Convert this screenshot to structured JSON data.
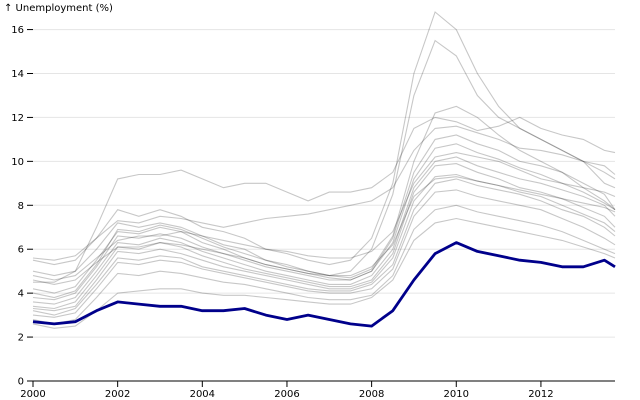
{
  "chart_data": {
    "type": "line",
    "title": "",
    "xlabel": "",
    "ylabel": "↑ Unemployment (%)",
    "xlim": [
      2000,
      2013.75
    ],
    "ylim": [
      0,
      16.8
    ],
    "x_ticks": [
      "2000",
      "2002",
      "2004",
      "2006",
      "2008",
      "2010",
      "2012"
    ],
    "y_ticks": [
      "0",
      "2",
      "4",
      "6",
      "8",
      "10",
      "12",
      "14",
      "16"
    ],
    "grid": "horizontal",
    "colors": {
      "background_series": "#000000",
      "highlight": "#00008b"
    },
    "x": [
      2000,
      2000.5,
      2001,
      2001.5,
      2002,
      2002.5,
      2003,
      2003.5,
      2004,
      2004.5,
      2005,
      2005.5,
      2006,
      2006.5,
      2007,
      2007.5,
      2008,
      2008.5,
      2009,
      2009.5,
      2010,
      2010.5,
      2011,
      2011.5,
      2012,
      2012.5,
      2013,
      2013.5,
      2013.75
    ],
    "highlight_series": {
      "values": [
        2.7,
        2.6,
        2.7,
        3.2,
        3.6,
        3.5,
        3.4,
        3.4,
        3.2,
        3.2,
        3.3,
        3.0,
        2.8,
        3.0,
        2.8,
        2.6,
        2.5,
        3.2,
        4.6,
        5.8,
        6.3,
        5.9,
        5.7,
        5.5,
        5.4,
        5.2,
        5.2,
        5.5,
        5.2
      ]
    },
    "series": [
      {
        "values": [
          5.5,
          5.3,
          5.5,
          6.5,
          7.8,
          7.5,
          7.8,
          7.5,
          7,
          6.8,
          6.5,
          6,
          5.8,
          5.5,
          5.3,
          5.5,
          6.5,
          9,
          14,
          16.8,
          16,
          14,
          12.5,
          11.5,
          11,
          10.5,
          10,
          9.5,
          9.2
        ]
      },
      {
        "values": [
          5,
          4.8,
          5,
          6,
          7.2,
          7,
          7.2,
          7,
          6.6,
          6.2,
          6,
          5.5,
          5.2,
          5,
          4.8,
          5,
          6,
          8.5,
          13,
          15.5,
          14.8,
          13,
          12,
          11.5,
          11,
          10.5,
          10,
          9,
          8.8
        ]
      },
      {
        "values": [
          4.5,
          4.5,
          5,
          7,
          9.2,
          9.4,
          9.4,
          9.6,
          9.2,
          8.8,
          9,
          9,
          8.6,
          8.2,
          8.6,
          8.6,
          8.8,
          9.5,
          11.5,
          12,
          11.8,
          11.4,
          11.6,
          12,
          11.5,
          11.2,
          11,
          10.5,
          10.4
        ]
      },
      {
        "values": [
          4.2,
          4,
          4.3,
          5.5,
          6.8,
          6.7,
          7,
          6.8,
          6.3,
          6,
          5.6,
          5.3,
          5.1,
          4.9,
          4.7,
          4.6,
          5,
          6.5,
          9.5,
          11,
          11.2,
          10.8,
          10.5,
          10,
          9.8,
          9.5,
          9,
          8.5,
          7.8
        ]
      },
      {
        "values": [
          3.6,
          3.5,
          3.8,
          5,
          6.3,
          6.2,
          6.5,
          6.3,
          5.9,
          5.6,
          5.3,
          5,
          4.8,
          4.6,
          4.4,
          4.4,
          4.8,
          6,
          8.8,
          10,
          10.2,
          9.8,
          9.5,
          9.2,
          9,
          8.7,
          8.4,
          8,
          7.5
        ]
      },
      {
        "values": [
          3.3,
          3.2,
          3.4,
          4.6,
          5.9,
          5.8,
          6,
          5.8,
          5.5,
          5.2,
          5,
          4.8,
          4.6,
          4.4,
          4.2,
          4.2,
          4.5,
          5.6,
          8.2,
          9.3,
          9.4,
          9.1,
          8.9,
          8.6,
          8.4,
          8,
          7.6,
          7.2,
          6.8
        ]
      },
      {
        "values": [
          3,
          2.9,
          3.1,
          4.2,
          5.4,
          5.3,
          5.5,
          5.4,
          5.1,
          4.9,
          4.7,
          4.5,
          4.3,
          4.1,
          4,
          4,
          4.2,
          5.1,
          7.5,
          8.6,
          8.7,
          8.4,
          8.2,
          8,
          7.8,
          7.4,
          7,
          6.5,
          6.2
        ]
      },
      {
        "values": [
          2.8,
          2.6,
          2.8,
          3.8,
          4.9,
          4.8,
          5,
          4.9,
          4.7,
          4.5,
          4.4,
          4.2,
          4,
          3.8,
          3.7,
          3.7,
          3.9,
          4.8,
          6.9,
          7.8,
          8,
          7.7,
          7.5,
          7.3,
          7.1,
          6.8,
          6.4,
          6,
          5.8
        ]
      },
      {
        "values": [
          4.8,
          4.6,
          4.8,
          5.6,
          6.4,
          6.6,
          6.6,
          6.8,
          6.6,
          6.4,
          6.2,
          6,
          5.9,
          5.7,
          5.6,
          5.6,
          5.9,
          6.8,
          9,
          10.2,
          10.4,
          10.2,
          10,
          9.6,
          9.2,
          9,
          8.8,
          8.6,
          8.4
        ]
      },
      {
        "values": [
          3.8,
          3.7,
          4,
          5.2,
          6.6,
          6.5,
          6.7,
          6.5,
          6.1,
          5.8,
          5.5,
          5.2,
          5,
          4.8,
          4.6,
          4.6,
          5,
          6.3,
          9.2,
          10.6,
          10.8,
          10.4,
          10.1,
          9.7,
          9.4,
          9,
          8.6,
          8.1,
          7.8
        ]
      },
      {
        "values": [
          2.6,
          2.4,
          2.5,
          3.2,
          4,
          4.1,
          4.2,
          4.2,
          4,
          3.9,
          3.9,
          3.8,
          3.7,
          3.6,
          3.5,
          3.5,
          3.8,
          4.6,
          6.4,
          7.2,
          7.4,
          7.2,
          7,
          6.8,
          6.6,
          6.4,
          6.1,
          5.8,
          5.6
        ]
      },
      {
        "values": [
          5.6,
          5.5,
          5.7,
          6.5,
          7.3,
          7.2,
          7.5,
          7.4,
          7.2,
          7,
          7.2,
          7.4,
          7.5,
          7.6,
          7.8,
          8,
          8.2,
          8.8,
          10.5,
          11.5,
          11.6,
          11.3,
          11,
          10.6,
          10.5,
          10.3,
          10,
          9.8,
          9.4
        ]
      },
      {
        "values": [
          4,
          3.8,
          4.1,
          5.3,
          6.9,
          6.8,
          7.1,
          6.9,
          6.5,
          6.1,
          5.8,
          5.5,
          5.3,
          5,
          4.8,
          4.7,
          5.1,
          6.6,
          10,
          12.2,
          12.5,
          12,
          11.2,
          10.5,
          10,
          9.5,
          8.8,
          8.2,
          7.8
        ]
      },
      {
        "values": [
          3.4,
          3.3,
          3.6,
          4.8,
          6.1,
          6,
          6.3,
          6.1,
          5.7,
          5.4,
          5.1,
          4.9,
          4.7,
          4.5,
          4.3,
          4.3,
          4.6,
          5.8,
          8.6,
          9.8,
          9.9,
          9.5,
          9.2,
          8.8,
          8.6,
          8.3,
          7.9,
          7.5,
          7
        ]
      },
      {
        "values": [
          4.6,
          4.4,
          4.6,
          5.4,
          6.1,
          6.1,
          6.3,
          6.2,
          6,
          5.8,
          5.6,
          5.3,
          5.1,
          4.9,
          4.8,
          4.8,
          5.2,
          6.2,
          8.4,
          9.2,
          9.3,
          9.1,
          8.9,
          8.7,
          8.5,
          8.3,
          8.1,
          7.9,
          7.7
        ]
      },
      {
        "values": [
          3.2,
          3,
          3.3,
          4.4,
          5.6,
          5.5,
          5.7,
          5.6,
          5.2,
          5,
          4.8,
          4.6,
          4.4,
          4.2,
          4.1,
          4.1,
          4.4,
          5.3,
          7.8,
          9,
          9.2,
          8.9,
          8.7,
          8.5,
          8.2,
          7.8,
          7.5,
          7,
          6.6
        ]
      }
    ]
  }
}
